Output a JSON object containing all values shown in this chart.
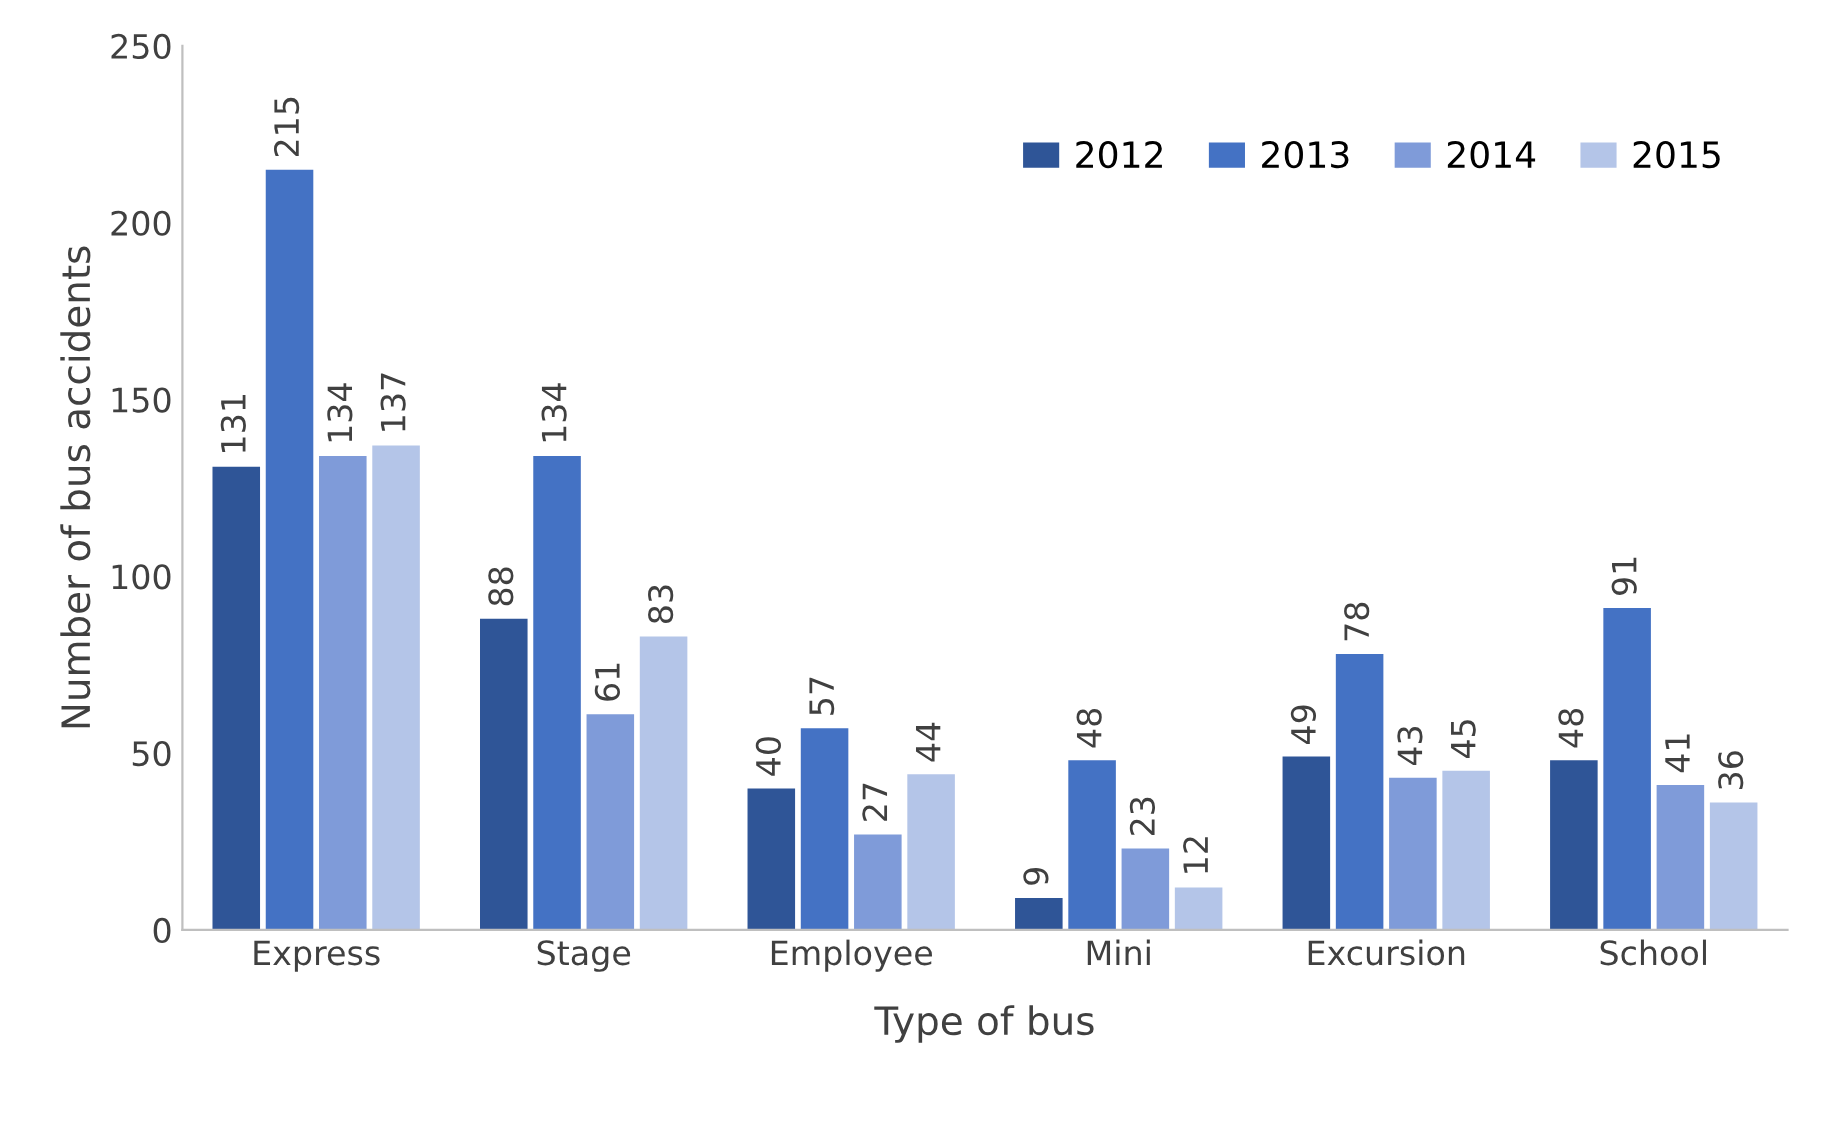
{
  "chart_data": {
    "type": "bar",
    "xlabel": "Type of bus",
    "ylabel": "Number of bus accidents",
    "categories": [
      "Express",
      "Stage",
      "Employee",
      "Mini",
      "Excursion",
      "School"
    ],
    "series": [
      {
        "name": "2012",
        "color": "#2f5597",
        "values": [
          131,
          88,
          40,
          9,
          49,
          48
        ]
      },
      {
        "name": "2013",
        "color": "#4472c4",
        "values": [
          215,
          134,
          57,
          48,
          78,
          91
        ]
      },
      {
        "name": "2014",
        "color": "#7f9bd9",
        "values": [
          134,
          61,
          27,
          23,
          43,
          41
        ]
      },
      {
        "name": "2015",
        "color": "#b4c5e8",
        "values": [
          137,
          83,
          44,
          12,
          45,
          36
        ]
      }
    ],
    "ylim": [
      0,
      250
    ],
    "yticks": [
      0,
      50,
      100,
      150,
      200,
      250
    ],
    "grid": false,
    "legend": "top right",
    "data_labels": true
  }
}
